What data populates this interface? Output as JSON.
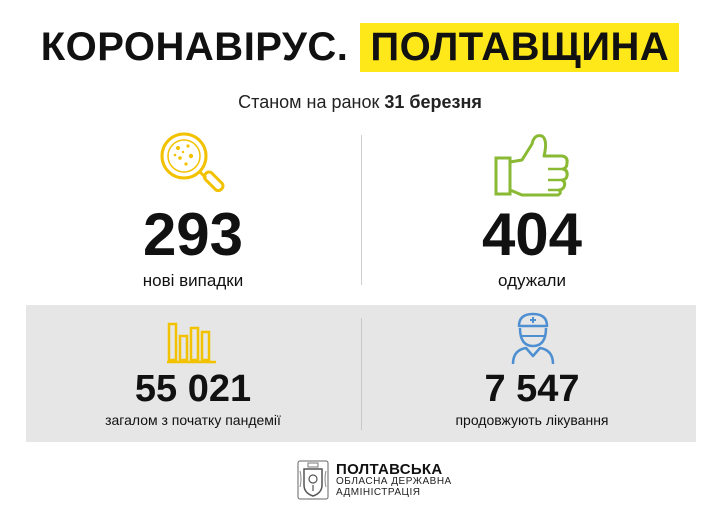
{
  "header": {
    "title": "КОРОНАВІРУС.",
    "highlight": "ПОЛТАВЩИНА",
    "subtitle_prefix": "Станом на ранок ",
    "subtitle_date": "31 березня"
  },
  "stats": {
    "new_cases": {
      "value": "293",
      "label": "нові випадки"
    },
    "recovered": {
      "value": "404",
      "label": "одужали"
    },
    "total": {
      "value": "55 021",
      "label": "загалом з початку пандемії"
    },
    "in_treatment": {
      "value": "7 547",
      "label": "продовжують лікування"
    }
  },
  "footer": {
    "org": "ПОЛТАВСЬКА",
    "line2": "ОБЛАСНА ДЕРЖАВНА",
    "line3": "АДМІНІСТРАЦІЯ"
  },
  "colors": {
    "accent_yellow": "#ffe81a",
    "icon_yellow": "#f2c200",
    "icon_green": "#8ab933",
    "icon_blue": "#4d8fd1",
    "band_grey": "#e6e6e6"
  },
  "icons": {
    "new_cases": "magnifier-virus-icon",
    "recovered": "thumbs-up-icon",
    "total": "bar-chart-icon",
    "in_treatment": "doctor-icon",
    "footer": "coat-of-arms-icon"
  }
}
